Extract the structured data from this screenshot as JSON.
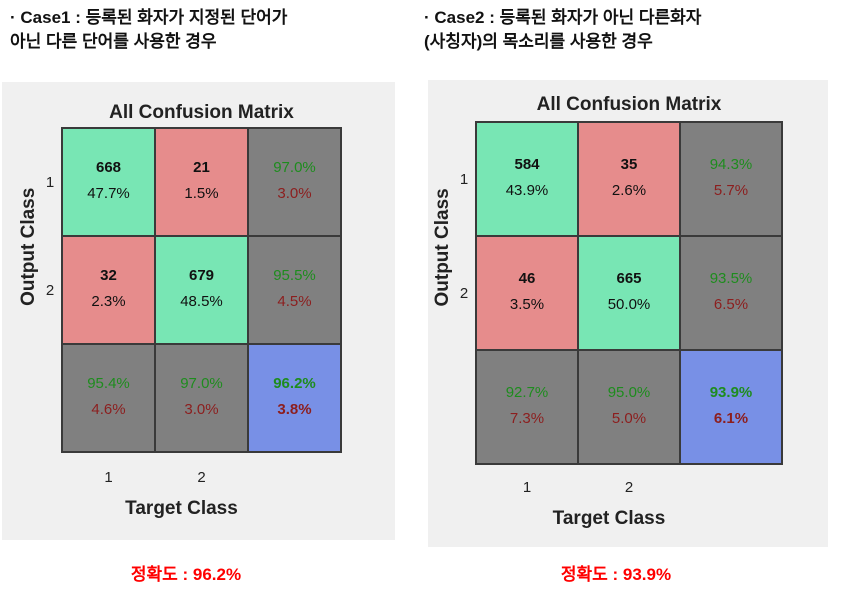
{
  "case1": {
    "caption": "· Case1 : 등록된 화자가 지정된 단어가\n  아닌 다른 단어를 사용한 경우",
    "accuracy_text": "정확도 : 96.2%"
  },
  "case2": {
    "caption": "· Case2 : 등록된 화자가 아닌 다른화자\n  (사칭자)의 목소리를 사용한 경우",
    "accuracy_text": "정확도 : 93.9%"
  },
  "colors": {
    "correct": "#78e6b4",
    "incorrect": "#e68c8c",
    "summary": "#808080",
    "overall": "#7890e6",
    "green_text": "#1e8c1e",
    "red_text": "#8c1e1e",
    "accuracy_red": "#ff0000"
  },
  "chart_data": [
    {
      "type": "heatmap",
      "title": "All Confusion Matrix",
      "xlabel": "Target Class",
      "ylabel": "Output Class",
      "x_ticks": [
        "1",
        "2"
      ],
      "y_ticks": [
        "1",
        "2"
      ],
      "cells": [
        [
          {
            "count": "668",
            "pct": "47.7%"
          },
          {
            "count": "21",
            "pct": "1.5%"
          },
          {
            "top": "97.0%",
            "bottom": "3.0%"
          }
        ],
        [
          {
            "count": "32",
            "pct": "2.3%"
          },
          {
            "count": "679",
            "pct": "48.5%"
          },
          {
            "top": "95.5%",
            "bottom": "4.5%"
          }
        ],
        [
          {
            "top": "95.4%",
            "bottom": "4.6%"
          },
          {
            "top": "97.0%",
            "bottom": "3.0%"
          },
          {
            "top": "96.2%",
            "bottom": "3.8%"
          }
        ]
      ]
    },
    {
      "type": "heatmap",
      "title": "All Confusion Matrix",
      "xlabel": "Target Class",
      "ylabel": "Output Class",
      "x_ticks": [
        "1",
        "2"
      ],
      "y_ticks": [
        "1",
        "2"
      ],
      "cells": [
        [
          {
            "count": "584",
            "pct": "43.9%"
          },
          {
            "count": "35",
            "pct": "2.6%"
          },
          {
            "top": "94.3%",
            "bottom": "5.7%"
          }
        ],
        [
          {
            "count": "46",
            "pct": "3.5%"
          },
          {
            "count": "665",
            "pct": "50.0%"
          },
          {
            "top": "93.5%",
            "bottom": "6.5%"
          }
        ],
        [
          {
            "top": "92.7%",
            "bottom": "7.3%"
          },
          {
            "top": "95.0%",
            "bottom": "5.0%"
          },
          {
            "top": "93.9%",
            "bottom": "6.1%"
          }
        ]
      ]
    }
  ]
}
